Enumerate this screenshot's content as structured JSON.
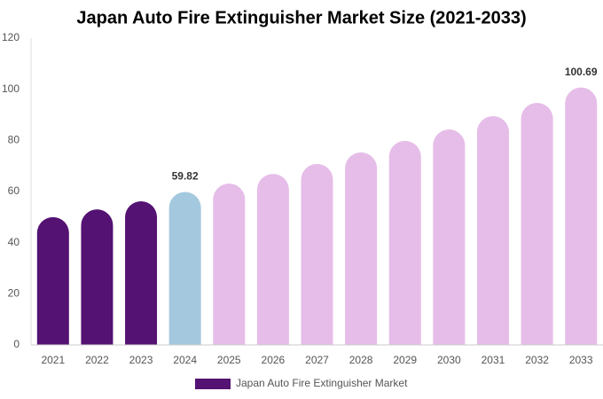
{
  "chart_data": {
    "type": "bar",
    "title": "Japan Auto Fire Extinguisher Market Size (2021-2033)",
    "categories": [
      "2021",
      "2022",
      "2023",
      "2024",
      "2025",
      "2026",
      "2027",
      "2028",
      "2029",
      "2030",
      "2031",
      "2032",
      "2033"
    ],
    "series": [
      {
        "name": "Japan Auto Fire Extinguisher Market",
        "color": "#541273",
        "values": [
          50,
          53,
          56.2,
          59.82,
          63.1,
          66.9,
          70.8,
          75.3,
          79.8,
          84.3,
          89.5,
          94.7,
          100.69
        ],
        "bar_colors": [
          "#541273",
          "#541273",
          "#541273",
          "#a4c9de",
          "#e6bde8",
          "#e6bde8",
          "#e6bde8",
          "#e6bde8",
          "#e6bde8",
          "#e6bde8",
          "#e6bde8",
          "#e6bde8",
          "#e6bde8"
        ],
        "value_labels": [
          null,
          null,
          null,
          "59.82",
          null,
          null,
          null,
          null,
          null,
          null,
          null,
          null,
          "100.69"
        ]
      }
    ],
    "ylim": [
      0,
      120
    ],
    "yticks": [
      0,
      20,
      40,
      60,
      80,
      100,
      120
    ],
    "grid": false,
    "legend": "bottom"
  }
}
